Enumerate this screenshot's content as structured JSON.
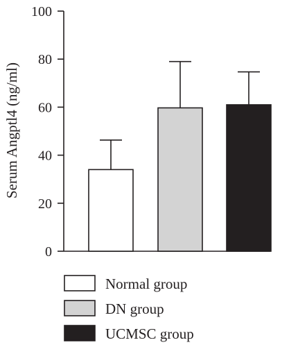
{
  "chart_data": {
    "type": "bar",
    "categories": [
      "Normal group",
      "DN group",
      "UCMSC group"
    ],
    "values": [
      34,
      59.7,
      61
    ],
    "errors": [
      12.3,
      19.3,
      13.7
    ],
    "colors": [
      "#ffffff",
      "#d3d3d3",
      "#231f20"
    ],
    "ylabel": "Serum Angptl4 (ng/ml)",
    "ylim": [
      0,
      100
    ],
    "yticks": [
      0,
      20,
      40,
      60,
      80,
      100
    ],
    "legend_position": "bottom",
    "grid": false
  }
}
